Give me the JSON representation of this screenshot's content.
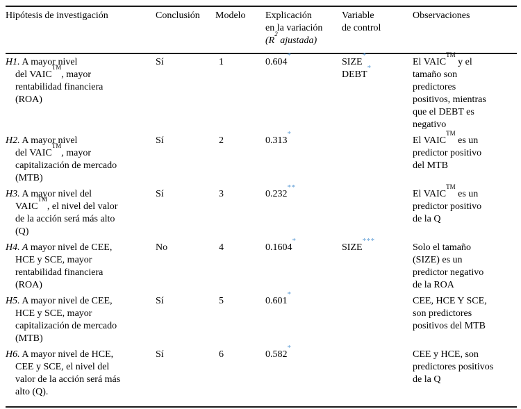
{
  "colors": {
    "star": "#5b9bd5",
    "rule": "#1a1a1a",
    "text": "#000000"
  },
  "header": {
    "hypothesis": "Hipótesis de investigación",
    "conclusion": "Conclusión",
    "model": "Modelo",
    "r2": "Explicación\nen la variación\n{i}(R{sup}2{/sup} ajustada){/i}",
    "control": "Variable\nde control",
    "observations": "Observaciones"
  },
  "rows": [
    {
      "hypothesis": "{i}H1.{/i} A mayor nivel\ndel VAIC{sup}TM{/sup}, mayor\nrentabilidad financiera\n(ROA)",
      "conclusion": "Sí",
      "model": "1",
      "r2": "0.604{star}*{/star}",
      "control": "SIZE{star}*{/star}\nDEBT{star}*{/star}",
      "observations": "El VAIC{sup}TM{/sup} y el\ntamaño son\npredictores\npositivos, mientras\nque el DEBT es\nnegativo"
    },
    {
      "hypothesis": "{i}H2.{/i} A mayor nivel\ndel VAIC{sup}TM{/sup}, mayor\ncapitalización de mercado\n(MTB)",
      "conclusion": "Sí",
      "model": "2",
      "r2": "0.313{star}*{/star}",
      "control": "",
      "observations": "El VAIC{sup}TM{/sup} es un\npredictor positivo\ndel MTB"
    },
    {
      "hypothesis": "{i}H3.{/i} A mayor nivel del\nVAIC{sup}TM{/sup}, el nivel del valor\nde la acción será más alto\n(Q)",
      "conclusion": "Sí",
      "model": "3",
      "r2": "0.232{star}**{/star}",
      "control": "",
      "observations": "El VAIC{sup}TM{/sup} es un\npredictor positivo\nde la Q"
    },
    {
      "hypothesis": "{i}H4. A{/i} mayor nivel de CEE,\nHCE y SCE, mayor\nrentabilidad financiera\n(ROA)",
      "conclusion": "No",
      "model": "4",
      "r2": "0.1604{star}*{/star}",
      "control": "SIZE{star}***{/star}",
      "observations": "Solo el tamaño\n(SIZE) es un\npredictor negativo\nde la ROA"
    },
    {
      "hypothesis": "{i}H5.{/i} A mayor nivel de CEE,\nHCE y SCE, mayor\ncapitalización de mercado\n(MTB)",
      "conclusion": "Sí",
      "model": "5",
      "r2": "0.601{star}*{/star}",
      "control": "",
      "observations": "CEE, HCE Y SCE,\nson predictores\npositivos del MTB"
    },
    {
      "hypothesis": "{i}H6.{/i} A mayor nivel de HCE,\nCEE y SCE, el nivel del\nvalor de la acción será más\nalto (Q).",
      "conclusion": "Sí",
      "model": "6",
      "r2": "0.582{star}*{/star}",
      "control": "",
      "observations": "CEE y HCE, son\npredictores positivos\nde la Q"
    }
  ]
}
